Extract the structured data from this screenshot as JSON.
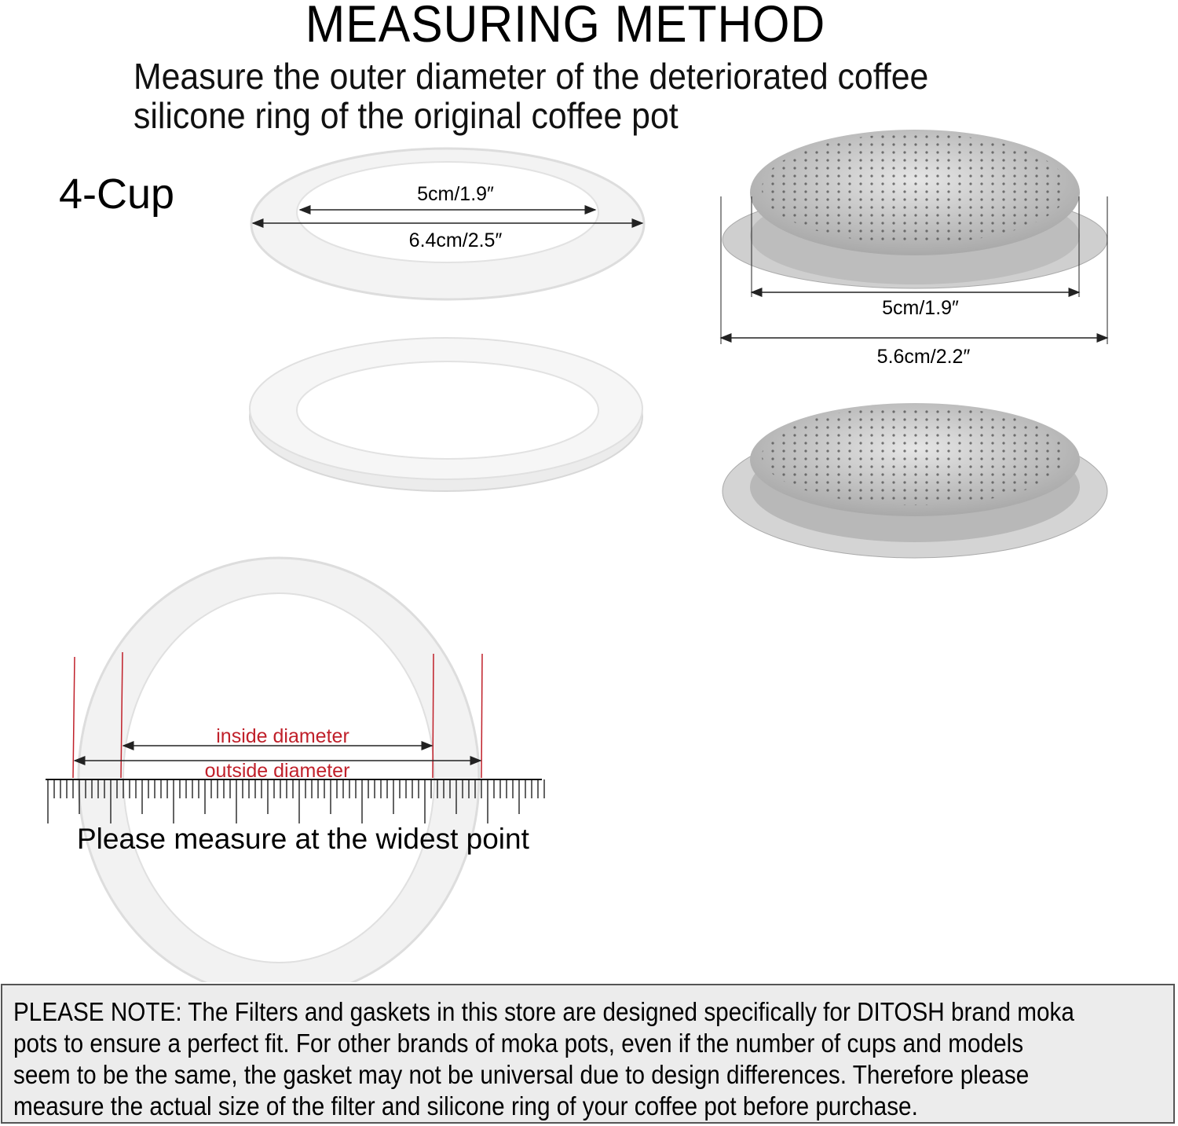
{
  "header": {
    "title": "MEASURING METHOD",
    "subtitle_lines": [
      "Measure the outer diameter of the deteriorated coffee",
      "silicone ring of the original coffee pot"
    ]
  },
  "size_label": "4-Cup",
  "gasket": {
    "inner_dimension": "5cm/1.9″",
    "outer_dimension": "6.4cm/2.5″"
  },
  "filter": {
    "inner_dimension": "5cm/1.9″",
    "outer_dimension": "5.6cm/2.2″"
  },
  "measuring_diagram": {
    "inside_label": "inside diameter",
    "outside_label": "outside diameter",
    "instruction": "Please measure at the widest point"
  },
  "note": {
    "lines": [
      "PLEASE NOTE: The Filters and gaskets in this store are designed specifically for DITOSH brand moka",
      "pots to ensure a perfect fit. For other brands of moka pots, even if the number of cups and models",
      "seem to be the same, the gasket may not be universal due to design differences. Therefore please",
      "measure the actual size of the filter and silicone ring of your coffee pot before purchase."
    ]
  },
  "colors": {
    "annotation_red": "#c0202a",
    "note_background": "#ececec",
    "gasket": "#f4f4f4",
    "filter_metal": "#c8c8c8"
  }
}
